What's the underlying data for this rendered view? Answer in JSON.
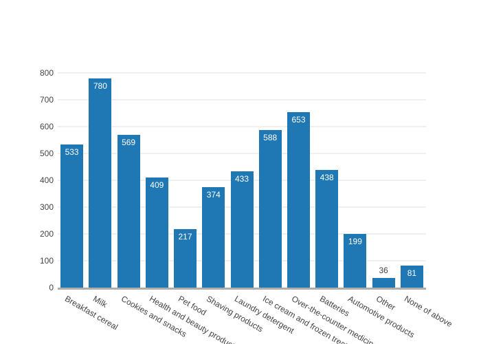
{
  "chart_data": {
    "type": "bar",
    "title": "",
    "xlabel": "",
    "ylabel": "",
    "categories": [
      "Breakfast cereal",
      "Milk",
      "Cookies and snacks",
      "Health and beauty products",
      "Pet food",
      "Shaving products",
      "Laundry detergent",
      "Ice cream and frozen treats",
      "Over-the-counter medicine",
      "Batteries",
      "Automotive products",
      "Other",
      "None of above"
    ],
    "values": [
      533,
      780,
      569,
      409,
      217,
      374,
      433,
      588,
      653,
      438,
      199,
      36,
      81
    ],
    "ylim": [
      0,
      800
    ],
    "yticks": [
      0,
      100,
      200,
      300,
      400,
      500,
      600,
      700,
      800
    ],
    "grid": true,
    "legend": false,
    "tick_angle_deg": 30,
    "colors": {
      "bar": "#1f77b4",
      "value_label_inside": "#ffffff",
      "value_label_outside": "#444444",
      "tick_label": "#444444",
      "gridline": "#efefef",
      "axis_line": "#adadad",
      "background": "#ffffff"
    }
  }
}
